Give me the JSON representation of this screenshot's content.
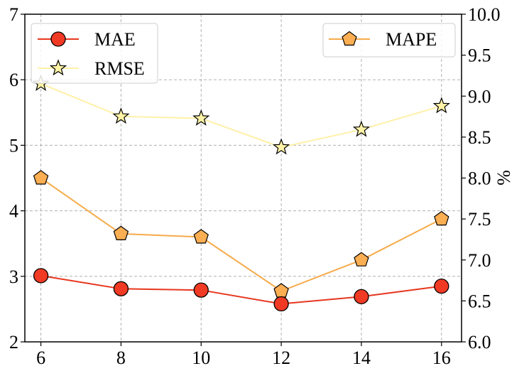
{
  "chart_data": {
    "type": "line",
    "x": [
      6,
      8,
      10,
      12,
      14,
      16
    ],
    "x_ticks": [
      "6",
      "8",
      "10",
      "12",
      "14",
      "16"
    ],
    "xlim": [
      5.6,
      16.5
    ],
    "left_axis": {
      "ylim": [
        2,
        7
      ],
      "ticks": [
        "2",
        "3",
        "4",
        "5",
        "6",
        "7"
      ]
    },
    "right_axis": {
      "ylabel": "%",
      "ylim": [
        6.0,
        10.0
      ],
      "ticks": [
        "6.0",
        "6.5",
        "7.0",
        "7.5",
        "8.0",
        "8.5",
        "9.0",
        "9.5",
        "10.0"
      ]
    },
    "grid": true,
    "series": [
      {
        "name": "MAE",
        "axis": "left",
        "marker": "circle",
        "color": "#e8361e",
        "marker_fill": "#f03a24",
        "values": [
          3.01,
          2.81,
          2.79,
          2.58,
          2.69,
          2.85
        ]
      },
      {
        "name": "RMSE",
        "axis": "left",
        "marker": "star",
        "color": "#fff0a8",
        "marker_fill": "#fff3a6",
        "values": [
          5.94,
          5.44,
          5.41,
          4.97,
          5.24,
          5.6
        ]
      },
      {
        "name": "MAPE",
        "axis": "right",
        "marker": "pentagon",
        "color": "#f7ab4a",
        "marker_fill": "#fbae52",
        "values": [
          8.0,
          7.32,
          7.28,
          6.62,
          7.0,
          7.5
        ]
      }
    ],
    "legends": [
      {
        "position": "top-left",
        "entries": [
          "MAE",
          "RMSE"
        ]
      },
      {
        "position": "top-right",
        "entries": [
          "MAPE"
        ]
      }
    ]
  }
}
